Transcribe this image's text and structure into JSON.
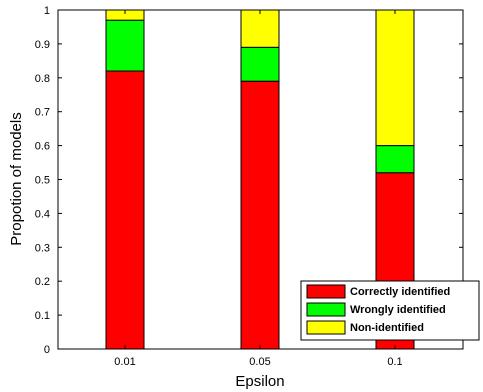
{
  "chart_data": {
    "type": "bar",
    "stacked": true,
    "categories": [
      "0.01",
      "0.05",
      "0.1"
    ],
    "series": [
      {
        "name": "Correctly identified",
        "color": "#ff0000",
        "values": [
          0.82,
          0.79,
          0.52
        ]
      },
      {
        "name": "Wrongly identified",
        "color": "#00ff00",
        "values": [
          0.15,
          0.1,
          0.08
        ]
      },
      {
        "name": "Non-identified",
        "color": "#ffff00",
        "values": [
          0.03,
          0.11,
          0.4
        ]
      }
    ],
    "xlabel": "Epsilon",
    "ylabel": "Propotion of models",
    "ylim": [
      0,
      1
    ],
    "yticks": [
      "0",
      "0.1",
      "0.2",
      "0.3",
      "0.4",
      "0.5",
      "0.6",
      "0.7",
      "0.8",
      "0.9",
      "1"
    ],
    "yticks_values": [
      0,
      0.1,
      0.2,
      0.3,
      0.4,
      0.5,
      0.6,
      0.7,
      0.8,
      0.9,
      1
    ],
    "grid": false,
    "legend_position": "bottom-right"
  }
}
